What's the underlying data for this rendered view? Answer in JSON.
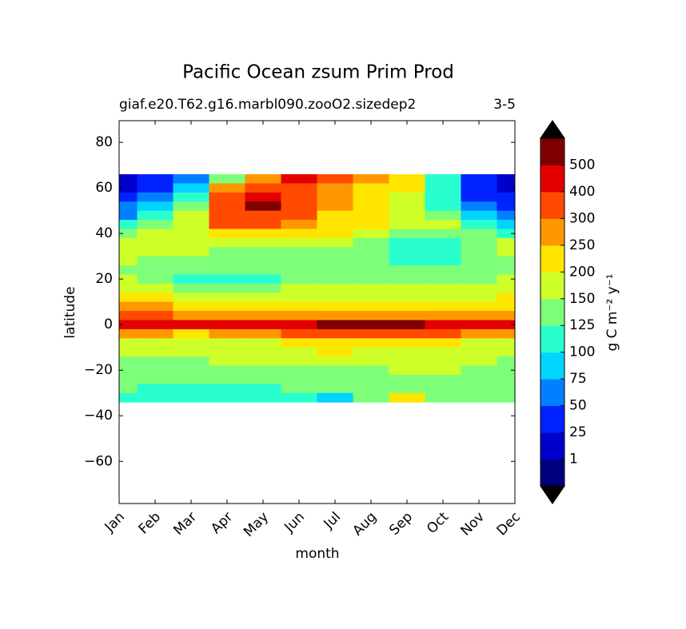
{
  "chart_data": {
    "type": "contour",
    "title": "Pacific Ocean zsum Prim Prod",
    "subtitle_left": "giaf.e20.T62.g16.marbl090.zooO2.sizedep2",
    "subtitle_right": "3-5",
    "x_label": "month",
    "y_label": "latitude",
    "colorbar_label": "g C m⁻² y⁻¹",
    "categories": [
      "Jan",
      "Feb",
      "Mar",
      "Apr",
      "May",
      "Jun",
      "Jul",
      "Aug",
      "Sep",
      "Oct",
      "Nov",
      "Dec"
    ],
    "y": [
      64,
      60,
      56,
      52,
      48,
      44,
      40,
      36,
      32,
      28,
      24,
      20,
      16,
      12,
      8,
      4,
      0,
      -4,
      -8,
      -12,
      -16,
      -20,
      -24,
      -28,
      -32
    ],
    "z": [
      [
        20,
        30,
        60,
        130,
        260,
        420,
        350,
        260,
        220,
        120,
        30,
        15
      ],
      [
        20,
        40,
        90,
        280,
        350,
        310,
        260,
        220,
        210,
        120,
        30,
        20
      ],
      [
        40,
        60,
        120,
        320,
        450,
        300,
        260,
        210,
        170,
        110,
        40,
        30
      ],
      [
        50,
        80,
        140,
        320,
        550,
        320,
        260,
        210,
        170,
        120,
        60,
        40
      ],
      [
        70,
        110,
        160,
        300,
        380,
        300,
        240,
        210,
        160,
        140,
        80,
        60
      ],
      [
        100,
        130,
        180,
        310,
        330,
        260,
        240,
        200,
        150,
        150,
        110,
        90
      ],
      [
        130,
        150,
        180,
        230,
        220,
        210,
        200,
        160,
        140,
        140,
        140,
        120
      ],
      [
        150,
        160,
        180,
        180,
        160,
        170,
        150,
        140,
        120,
        120,
        140,
        150
      ],
      [
        160,
        160,
        150,
        140,
        140,
        140,
        140,
        140,
        120,
        110,
        130,
        150
      ],
      [
        150,
        140,
        140,
        140,
        140,
        140,
        130,
        130,
        120,
        120,
        130,
        140
      ],
      [
        140,
        140,
        140,
        140,
        140,
        140,
        140,
        140,
        140,
        140,
        140,
        140
      ],
      [
        150,
        140,
        120,
        110,
        120,
        140,
        140,
        140,
        140,
        140,
        140,
        150
      ],
      [
        160,
        160,
        140,
        140,
        140,
        160,
        160,
        170,
        160,
        160,
        160,
        160
      ],
      [
        220,
        200,
        180,
        170,
        170,
        170,
        170,
        170,
        170,
        170,
        180,
        200
      ],
      [
        280,
        260,
        220,
        210,
        200,
        200,
        200,
        210,
        210,
        210,
        210,
        230
      ],
      [
        330,
        300,
        280,
        250,
        250,
        260,
        280,
        280,
        280,
        260,
        260,
        280
      ],
      [
        480,
        450,
        420,
        400,
        430,
        470,
        520,
        540,
        520,
        470,
        450,
        470
      ],
      [
        260,
        250,
        240,
        260,
        280,
        320,
        350,
        350,
        330,
        300,
        280,
        260
      ],
      [
        180,
        170,
        180,
        180,
        190,
        210,
        230,
        240,
        220,
        210,
        190,
        180
      ],
      [
        150,
        150,
        150,
        160,
        170,
        180,
        210,
        190,
        170,
        160,
        160,
        150
      ],
      [
        140,
        140,
        140,
        150,
        150,
        150,
        160,
        160,
        160,
        150,
        150,
        140
      ],
      [
        140,
        140,
        140,
        140,
        140,
        140,
        140,
        140,
        150,
        150,
        140,
        140
      ],
      [
        140,
        140,
        130,
        130,
        140,
        140,
        140,
        140,
        140,
        140,
        140,
        140
      ],
      [
        130,
        120,
        110,
        110,
        120,
        130,
        140,
        140,
        140,
        140,
        140,
        140
      ],
      [
        120,
        110,
        110,
        110,
        110,
        120,
        90,
        140,
        220,
        140,
        140,
        140
      ]
    ],
    "ylim": [
      -78.5,
      89.5
    ],
    "yticks": [
      {
        "value": -60,
        "label": "−60"
      },
      {
        "value": -40,
        "label": "−40"
      },
      {
        "value": -20,
        "label": "−20"
      },
      0,
      20,
      40,
      60,
      80
    ],
    "levels": [
      1,
      25,
      50,
      75,
      100,
      125,
      150,
      200,
      250,
      300,
      400,
      500
    ],
    "colors": [
      "#00007f",
      "#0000cd",
      "#0022ff",
      "#0080ff",
      "#00d4ff",
      "#29ffce",
      "#7dff7a",
      "#ceff29",
      "#ffe500",
      "#ff9800",
      "#ff4a00",
      "#e30000",
      "#7f0000"
    ],
    "extend_color": "#000000"
  }
}
